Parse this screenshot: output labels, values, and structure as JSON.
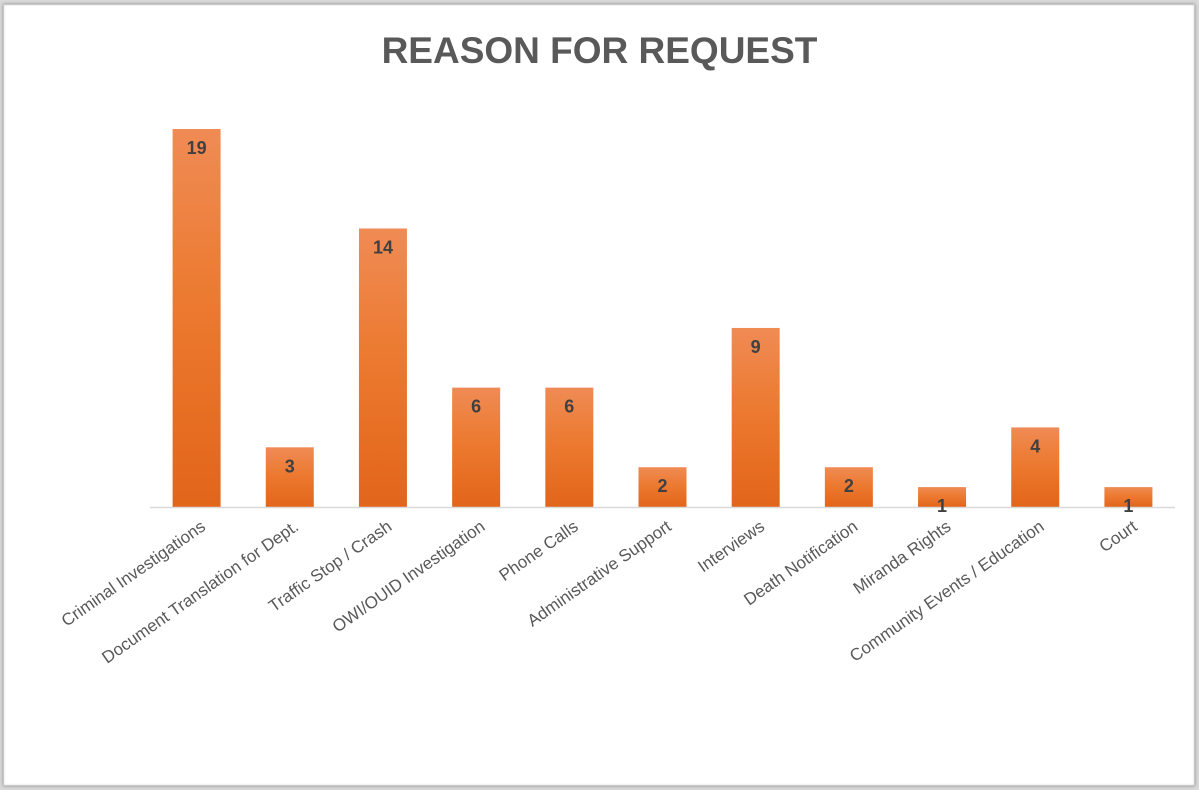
{
  "chart_data": {
    "type": "bar",
    "title": "REASON FOR REQUEST",
    "categories": [
      "Criminal Investigations",
      "Document Translation for Dept.",
      "Traffic Stop / Crash",
      "OWI/OUID Investigation",
      "Phone Calls",
      "Administrative Support",
      "Interviews",
      "Death Notification",
      "Miranda Rights",
      "Community Events / Education",
      "Court"
    ],
    "values": [
      19,
      3,
      14,
      6,
      6,
      2,
      9,
      2,
      1,
      4,
      1
    ],
    "xlabel": "",
    "ylabel": "",
    "ylim": [
      0,
      19
    ],
    "grid": false,
    "data_labels": true,
    "colors": {
      "bar_top": "#f08b55",
      "bar_bottom": "#e46a1c",
      "axis": "#d9d9d9",
      "title": "#595959"
    }
  }
}
